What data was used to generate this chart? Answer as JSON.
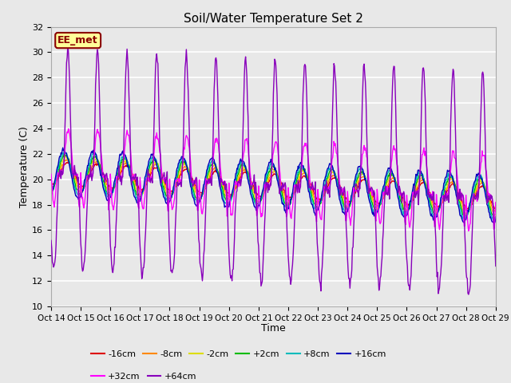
{
  "title": "Soil/Water Temperature Set 2",
  "xlabel": "Time",
  "ylabel": "Temperature (C)",
  "ylim": [
    10,
    32
  ],
  "xlim": [
    0,
    360
  ],
  "annotation": "EE_met",
  "fig_facecolor": "#e8e8e8",
  "plot_bg_color": "#e8e8e8",
  "series": [
    {
      "label": "-16cm",
      "color": "#dd0000",
      "depth": -16,
      "lw": 1.0
    },
    {
      "label": "-8cm",
      "color": "#ff8800",
      "depth": -8,
      "lw": 1.0
    },
    {
      "label": "-2cm",
      "color": "#dddd00",
      "depth": -2,
      "lw": 1.0
    },
    {
      "label": "+2cm",
      "color": "#00bb00",
      "depth": 2,
      "lw": 1.0
    },
    {
      "label": "+8cm",
      "color": "#00bbbb",
      "depth": 8,
      "lw": 1.0
    },
    {
      "label": "+16cm",
      "color": "#0000bb",
      "depth": 16,
      "lw": 1.0
    },
    {
      "label": "+32cm",
      "color": "#ff00ff",
      "depth": 32,
      "lw": 1.0
    },
    {
      "label": "+64cm",
      "color": "#8800bb",
      "depth": 64,
      "lw": 1.0
    }
  ],
  "xtick_labels": [
    "Oct 14",
    "Oct 15",
    "Oct 16",
    "Oct 17",
    "Oct 18",
    "Oct 19",
    "Oct 20",
    "Oct 21",
    "Oct 22",
    "Oct 23",
    "Oct 24",
    "Oct 25",
    "Oct 26",
    "Oct 27",
    "Oct 28",
    "Oct 29"
  ],
  "xtick_positions": [
    0,
    24,
    48,
    72,
    96,
    120,
    144,
    168,
    192,
    216,
    240,
    264,
    288,
    312,
    336,
    360
  ],
  "ytick_vals": [
    10,
    12,
    14,
    16,
    18,
    20,
    22,
    24,
    26,
    28,
    30,
    32
  ],
  "base_temp_start": 20.5,
  "base_temp_end": 18.5
}
